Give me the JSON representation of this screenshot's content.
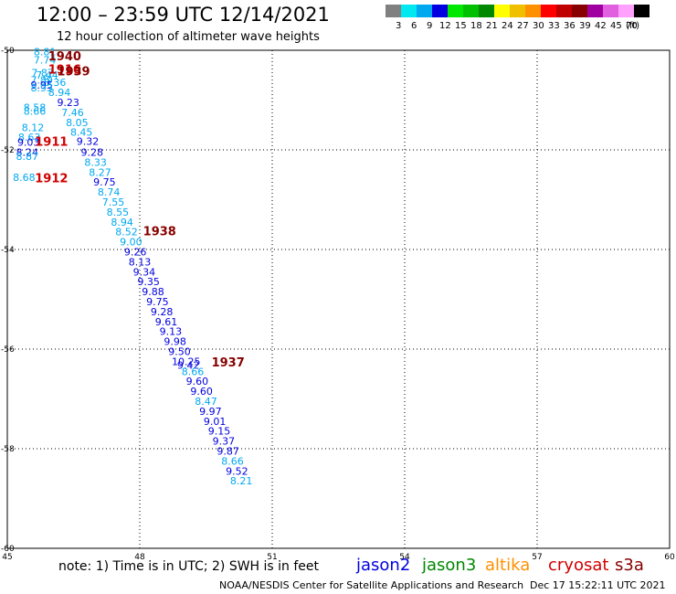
{
  "header": {
    "title": "12:00 – 23:59 UTC 12/14/2021",
    "subtitle": "12 hour collection of altimeter wave heights"
  },
  "legend": {
    "unit": "(ft)",
    "items": [
      {
        "label": "3",
        "color": "#808080"
      },
      {
        "label": "6",
        "color": "#00e8f0"
      },
      {
        "label": "9",
        "color": "#00a8f0"
      },
      {
        "label": "12",
        "color": "#0000e0"
      },
      {
        "label": "15",
        "color": "#00e800"
      },
      {
        "label": "18",
        "color": "#00c000"
      },
      {
        "label": "21",
        "color": "#008800"
      },
      {
        "label": "24",
        "color": "#ffff00"
      },
      {
        "label": "27",
        "color": "#f0c000"
      },
      {
        "label": "30",
        "color": "#ff9000"
      },
      {
        "label": "33",
        "color": "#ff0000"
      },
      {
        "label": "36",
        "color": "#c00000"
      },
      {
        "label": "39",
        "color": "#880000"
      },
      {
        "label": "42",
        "color": "#a000a0"
      },
      {
        "label": "45",
        "color": "#e060e0"
      },
      {
        "label": "70",
        "color": "#ffa0ff"
      },
      {
        "label": "",
        "color": "#000000"
      }
    ]
  },
  "satellites": [
    {
      "name": "jason2",
      "color": "#0000e0"
    },
    {
      "name": "jason3",
      "color": "#008800"
    },
    {
      "name": "altika",
      "color": "#ff9000"
    },
    {
      "name": "cryosat",
      "color": "#d00000"
    },
    {
      "name": "s3a",
      "color": "#880000"
    }
  ],
  "footer": {
    "note": "note:  1) Time is in UTC;  2) SWH is in feet",
    "credit": "NOAA/NESDIS Center for Satellite Applications and Research",
    "timestamp": "Dec 17 15:22:11 UTC 2021"
  },
  "chart_data": {
    "type": "scatter",
    "x_ticks": [
      "45",
      "48",
      "51",
      "54",
      "57",
      "60"
    ],
    "y_ticks": [
      "-50",
      "-52",
      "-54",
      "-56",
      "-58",
      "-60"
    ],
    "xlim": [
      45,
      60
    ],
    "ylim": [
      -60,
      -50
    ],
    "grid": true,
    "wave_heights": [
      {
        "x": 45.85,
        "y": -50.1,
        "text": "8.81",
        "color": "#00a8f0"
      },
      {
        "x": 45.85,
        "y": -50.27,
        "text": "7.74",
        "color": "#00a8f0"
      },
      {
        "x": 45.8,
        "y": -50.52,
        "text": "7.87",
        "color": "#00a8f0"
      },
      {
        "x": 45.9,
        "y": -50.57,
        "text": "7.44",
        "color": "#00a8f0"
      },
      {
        "x": 45.78,
        "y": -50.67,
        "text": "7.89",
        "color": "#00a8f0"
      },
      {
        "x": 46.08,
        "y": -50.72,
        "text": "8.36",
        "color": "#00a8f0"
      },
      {
        "x": 45.78,
        "y": -50.77,
        "text": "9.95",
        "color": "#0000e0"
      },
      {
        "x": 45.78,
        "y": -50.83,
        "text": "8.93",
        "color": "#00a8f0"
      },
      {
        "x": 46.18,
        "y": -50.92,
        "text": "8.94",
        "color": "#00a8f0"
      },
      {
        "x": 46.38,
        "y": -51.12,
        "text": "9.23",
        "color": "#0000e0"
      },
      {
        "x": 45.62,
        "y": -51.22,
        "text": "8.58",
        "color": "#00a8f0"
      },
      {
        "x": 45.62,
        "y": -51.29,
        "text": "8.66",
        "color": "#00a8f0"
      },
      {
        "x": 46.48,
        "y": -51.32,
        "text": "7.46",
        "color": "#00a8f0"
      },
      {
        "x": 46.58,
        "y": -51.52,
        "text": "8.05",
        "color": "#00a8f0"
      },
      {
        "x": 45.58,
        "y": -51.62,
        "text": "8.12",
        "color": "#00a8f0"
      },
      {
        "x": 46.68,
        "y": -51.72,
        "text": "8.45",
        "color": "#00a8f0"
      },
      {
        "x": 45.5,
        "y": -51.82,
        "text": "8.63",
        "color": "#00a8f0"
      },
      {
        "x": 46.82,
        "y": -51.9,
        "text": "9.32",
        "color": "#0000e0"
      },
      {
        "x": 45.48,
        "y": -51.92,
        "text": "9.03",
        "color": "#0000e0"
      },
      {
        "x": 45.45,
        "y": -52.12,
        "text": "8.24",
        "color": "#0000e0"
      },
      {
        "x": 46.92,
        "y": -52.12,
        "text": "9.28",
        "color": "#0000e0"
      },
      {
        "x": 45.45,
        "y": -52.2,
        "text": "8.87",
        "color": "#00a8f0"
      },
      {
        "x": 47.0,
        "y": -52.32,
        "text": "8.33",
        "color": "#00a8f0"
      },
      {
        "x": 47.1,
        "y": -52.52,
        "text": "8.27",
        "color": "#00a8f0"
      },
      {
        "x": 45.38,
        "y": -52.62,
        "text": "8.68",
        "color": "#00a8f0"
      },
      {
        "x": 47.2,
        "y": -52.72,
        "text": "9.75",
        "color": "#0000e0"
      },
      {
        "x": 47.3,
        "y": -52.92,
        "text": "8.74",
        "color": "#00a8f0"
      },
      {
        "x": 47.4,
        "y": -53.12,
        "text": "7.55",
        "color": "#00a8f0"
      },
      {
        "x": 47.5,
        "y": -53.32,
        "text": "8.55",
        "color": "#00a8f0"
      },
      {
        "x": 47.6,
        "y": -53.52,
        "text": "8.94",
        "color": "#00a8f0"
      },
      {
        "x": 47.7,
        "y": -53.72,
        "text": "8.52",
        "color": "#00a8f0"
      },
      {
        "x": 47.8,
        "y": -53.92,
        "text": "9.00",
        "color": "#00a8f0"
      },
      {
        "x": 47.9,
        "y": -54.12,
        "text": "9.26",
        "color": "#0000e0"
      },
      {
        "x": 48.0,
        "y": -54.32,
        "text": "8.13",
        "color": "#0000e0"
      },
      {
        "x": 48.1,
        "y": -54.52,
        "text": "9.34",
        "color": "#0000e0"
      },
      {
        "x": 48.2,
        "y": -54.72,
        "text": "9.35",
        "color": "#0000e0"
      },
      {
        "x": 48.3,
        "y": -54.92,
        "text": "9.88",
        "color": "#0000e0"
      },
      {
        "x": 48.4,
        "y": -55.12,
        "text": "9.75",
        "color": "#0000e0"
      },
      {
        "x": 48.5,
        "y": -55.32,
        "text": "9.28",
        "color": "#0000e0"
      },
      {
        "x": 48.6,
        "y": -55.52,
        "text": "9.61",
        "color": "#0000e0"
      },
      {
        "x": 48.7,
        "y": -55.72,
        "text": "9.13",
        "color": "#0000e0"
      },
      {
        "x": 48.8,
        "y": -55.92,
        "text": "9.98",
        "color": "#0000e0"
      },
      {
        "x": 48.9,
        "y": -56.12,
        "text": "9.50",
        "color": "#0000e0"
      },
      {
        "x": 49.05,
        "y": -56.32,
        "text": "10.25",
        "color": "#0000e0"
      },
      {
        "x": 49.1,
        "y": -56.39,
        "text": "9.42",
        "color": "#0000e0"
      },
      {
        "x": 49.2,
        "y": -56.52,
        "text": "8.66",
        "color": "#00a8f0"
      },
      {
        "x": 49.3,
        "y": -56.72,
        "text": "9.60",
        "color": "#0000e0"
      },
      {
        "x": 49.4,
        "y": -56.92,
        "text": "9.60",
        "color": "#0000e0"
      },
      {
        "x": 49.5,
        "y": -57.12,
        "text": "8.47",
        "color": "#00a8f0"
      },
      {
        "x": 49.6,
        "y": -57.32,
        "text": "9.97",
        "color": "#0000e0"
      },
      {
        "x": 49.7,
        "y": -57.52,
        "text": "9.01",
        "color": "#0000e0"
      },
      {
        "x": 49.8,
        "y": -57.72,
        "text": "9.15",
        "color": "#0000e0"
      },
      {
        "x": 49.9,
        "y": -57.92,
        "text": "9.37",
        "color": "#0000e0"
      },
      {
        "x": 50.0,
        "y": -58.12,
        "text": "9.87",
        "color": "#0000e0"
      },
      {
        "x": 50.1,
        "y": -58.32,
        "text": "8.66",
        "color": "#00a8f0"
      },
      {
        "x": 50.2,
        "y": -58.52,
        "text": "9.52",
        "color": "#0000e0"
      },
      {
        "x": 50.3,
        "y": -58.72,
        "text": "8.21",
        "color": "#00a8f0"
      }
    ],
    "time_labels": [
      {
        "x": 46.3,
        "y": -50.2,
        "text": "1940",
        "color": "#880000"
      },
      {
        "x": 46.3,
        "y": -50.47,
        "text": "1916",
        "color": "#d00000"
      },
      {
        "x": 46.5,
        "y": -50.5,
        "text": "1939",
        "color": "#880000"
      },
      {
        "x": 46.0,
        "y": -51.92,
        "text": "1911",
        "color": "#d00000"
      },
      {
        "x": 46.0,
        "y": -52.65,
        "text": "1912",
        "color": "#d00000"
      },
      {
        "x": 48.45,
        "y": -53.72,
        "text": "1938",
        "color": "#880000"
      },
      {
        "x": 50.0,
        "y": -56.35,
        "text": "1937",
        "color": "#880000"
      }
    ]
  }
}
